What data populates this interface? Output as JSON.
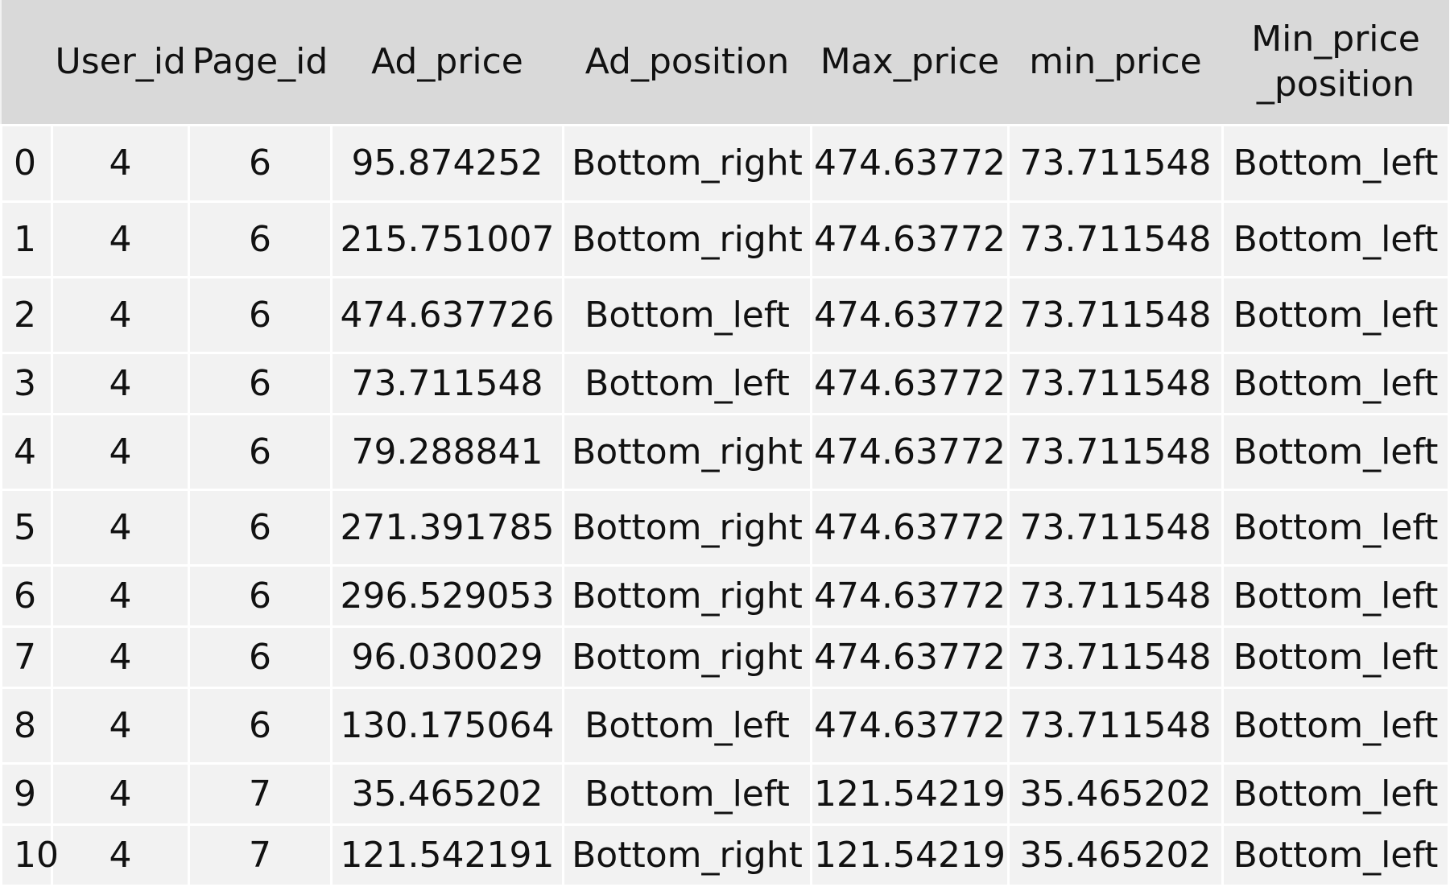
{
  "table": {
    "headers": [
      "",
      "User_id",
      "Page_id",
      "Ad_price",
      "Ad_position",
      "Max_price",
      "min_price",
      "Min_price\n_position"
    ],
    "rows": [
      [
        "0",
        "4",
        "6",
        "95.874252",
        "Bottom_right",
        "474.63772",
        "73.711548",
        "Bottom_left"
      ],
      [
        "1",
        "4",
        "6",
        "215.751007",
        "Bottom_right",
        "474.63772",
        "73.711548",
        "Bottom_left"
      ],
      [
        "2",
        "4",
        "6",
        "474.637726",
        "Bottom_left",
        "474.63772",
        "73.711548",
        "Bottom_left"
      ],
      [
        "3",
        "4",
        "6",
        "73.711548",
        "Bottom_left",
        "474.63772",
        "73.711548",
        "Bottom_left"
      ],
      [
        "4",
        "4",
        "6",
        "79.288841",
        "Bottom_right",
        "474.63772",
        "73.711548",
        "Bottom_left"
      ],
      [
        "5",
        "4",
        "6",
        "271.391785",
        "Bottom_right",
        "474.63772",
        "73.711548",
        "Bottom_left"
      ],
      [
        "6",
        "4",
        "6",
        "296.529053",
        "Bottom_right",
        "474.63772",
        "73.711548",
        "Bottom_left"
      ],
      [
        "7",
        "4",
        "6",
        "96.030029",
        "Bottom_right",
        "474.63772",
        "73.711548",
        "Bottom_left"
      ],
      [
        "8",
        "4",
        "6",
        "130.175064",
        "Bottom_left",
        "474.63772",
        "73.711548",
        "Bottom_left"
      ],
      [
        "9",
        "4",
        "7",
        "35.465202",
        "Bottom_left",
        "121.54219",
        "35.465202",
        "Bottom_left"
      ],
      [
        "10",
        "4",
        "7",
        "121.542191",
        "Bottom_right",
        "121.54219",
        "35.465202",
        "Bottom_left"
      ]
    ]
  },
  "colors": {
    "header_background": "#d9d9d9",
    "cell_background": "#f2f2f2",
    "grid_line": "#ffffff",
    "text": "#111111"
  }
}
